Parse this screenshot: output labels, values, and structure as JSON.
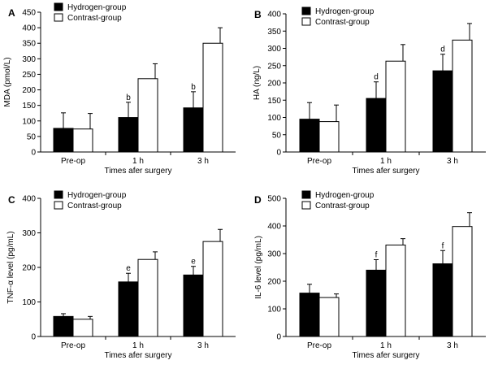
{
  "chart_data": [
    {
      "type": "bar",
      "panel_label": "A",
      "categories": [
        "Pre-op",
        "1 h",
        "3 h"
      ],
      "xlabel": "Times afer surgery",
      "ylabel": "MDA (pmol/L)",
      "ylim": [
        0,
        450
      ],
      "yticks": [
        "0",
        "50",
        "100",
        "150",
        "200",
        "250",
        "300",
        "350",
        "400",
        "450"
      ],
      "series": [
        {
          "name": "Hydrogen-group",
          "color": "#000000",
          "values": [
            76,
            111,
            142
          ],
          "errors": [
            50,
            49,
            52
          ],
          "annotations": [
            "",
            "b",
            "b"
          ]
        },
        {
          "name": "Contrast-group",
          "color": "#ffffff",
          "values": [
            74,
            236,
            350
          ],
          "errors": [
            50,
            48,
            50
          ],
          "annotations": [
            "",
            "",
            ""
          ]
        }
      ]
    },
    {
      "type": "bar",
      "panel_label": "B",
      "categories": [
        "Pre-op",
        "1 h",
        "3 h"
      ],
      "xlabel": "Times afer surgery",
      "ylabel": "HA (ng/L)",
      "ylim": [
        0,
        400
      ],
      "yticks": [
        "0",
        "50",
        "100",
        "150",
        "200",
        "250",
        "300",
        "350",
        "400"
      ],
      "series": [
        {
          "name": "Hydrogen-group",
          "color": "#000000",
          "values": [
            95,
            155,
            235
          ],
          "errors": [
            48,
            48,
            48
          ],
          "annotations": [
            "",
            "d",
            "d"
          ]
        },
        {
          "name": "Contrast-group",
          "color": "#ffffff",
          "values": [
            88,
            263,
            324
          ],
          "errors": [
            48,
            48,
            48
          ],
          "annotations": [
            "",
            "",
            ""
          ]
        }
      ]
    },
    {
      "type": "bar",
      "panel_label": "C",
      "categories": [
        "Pre-op",
        "1 h",
        "3 h"
      ],
      "xlabel": "Times afer surgery",
      "ylabel": "TNF-α level (pg/mL)",
      "ylim": [
        0,
        400
      ],
      "yticks": [
        "0",
        "100",
        "200",
        "300",
        "400"
      ],
      "series": [
        {
          "name": "Hydrogen-group",
          "color": "#000000",
          "values": [
            58,
            158,
            178
          ],
          "errors": [
            8,
            25,
            25
          ],
          "annotations": [
            "",
            "e",
            "e"
          ]
        },
        {
          "name": "Contrast-group",
          "color": "#ffffff",
          "values": [
            50,
            223,
            275
          ],
          "errors": [
            8,
            22,
            35
          ],
          "annotations": [
            "",
            "",
            ""
          ]
        }
      ]
    },
    {
      "type": "bar",
      "panel_label": "D",
      "categories": [
        "Pre-op",
        "1 h",
        "3 h"
      ],
      "xlabel": "Times afer surgery",
      "ylabel": "IL-6 level (pg/mL)",
      "ylim": [
        0,
        500
      ],
      "yticks": [
        "0",
        "100",
        "200",
        "300",
        "400",
        "500"
      ],
      "series": [
        {
          "name": "Hydrogen-group",
          "color": "#000000",
          "values": [
            157,
            240,
            263
          ],
          "errors": [
            32,
            38,
            48
          ],
          "annotations": [
            "",
            "f",
            "f"
          ]
        },
        {
          "name": "Contrast-group",
          "color": "#ffffff",
          "values": [
            141,
            331,
            398
          ],
          "errors": [
            13,
            23,
            50
          ],
          "annotations": [
            "",
            "",
            ""
          ]
        }
      ]
    }
  ]
}
